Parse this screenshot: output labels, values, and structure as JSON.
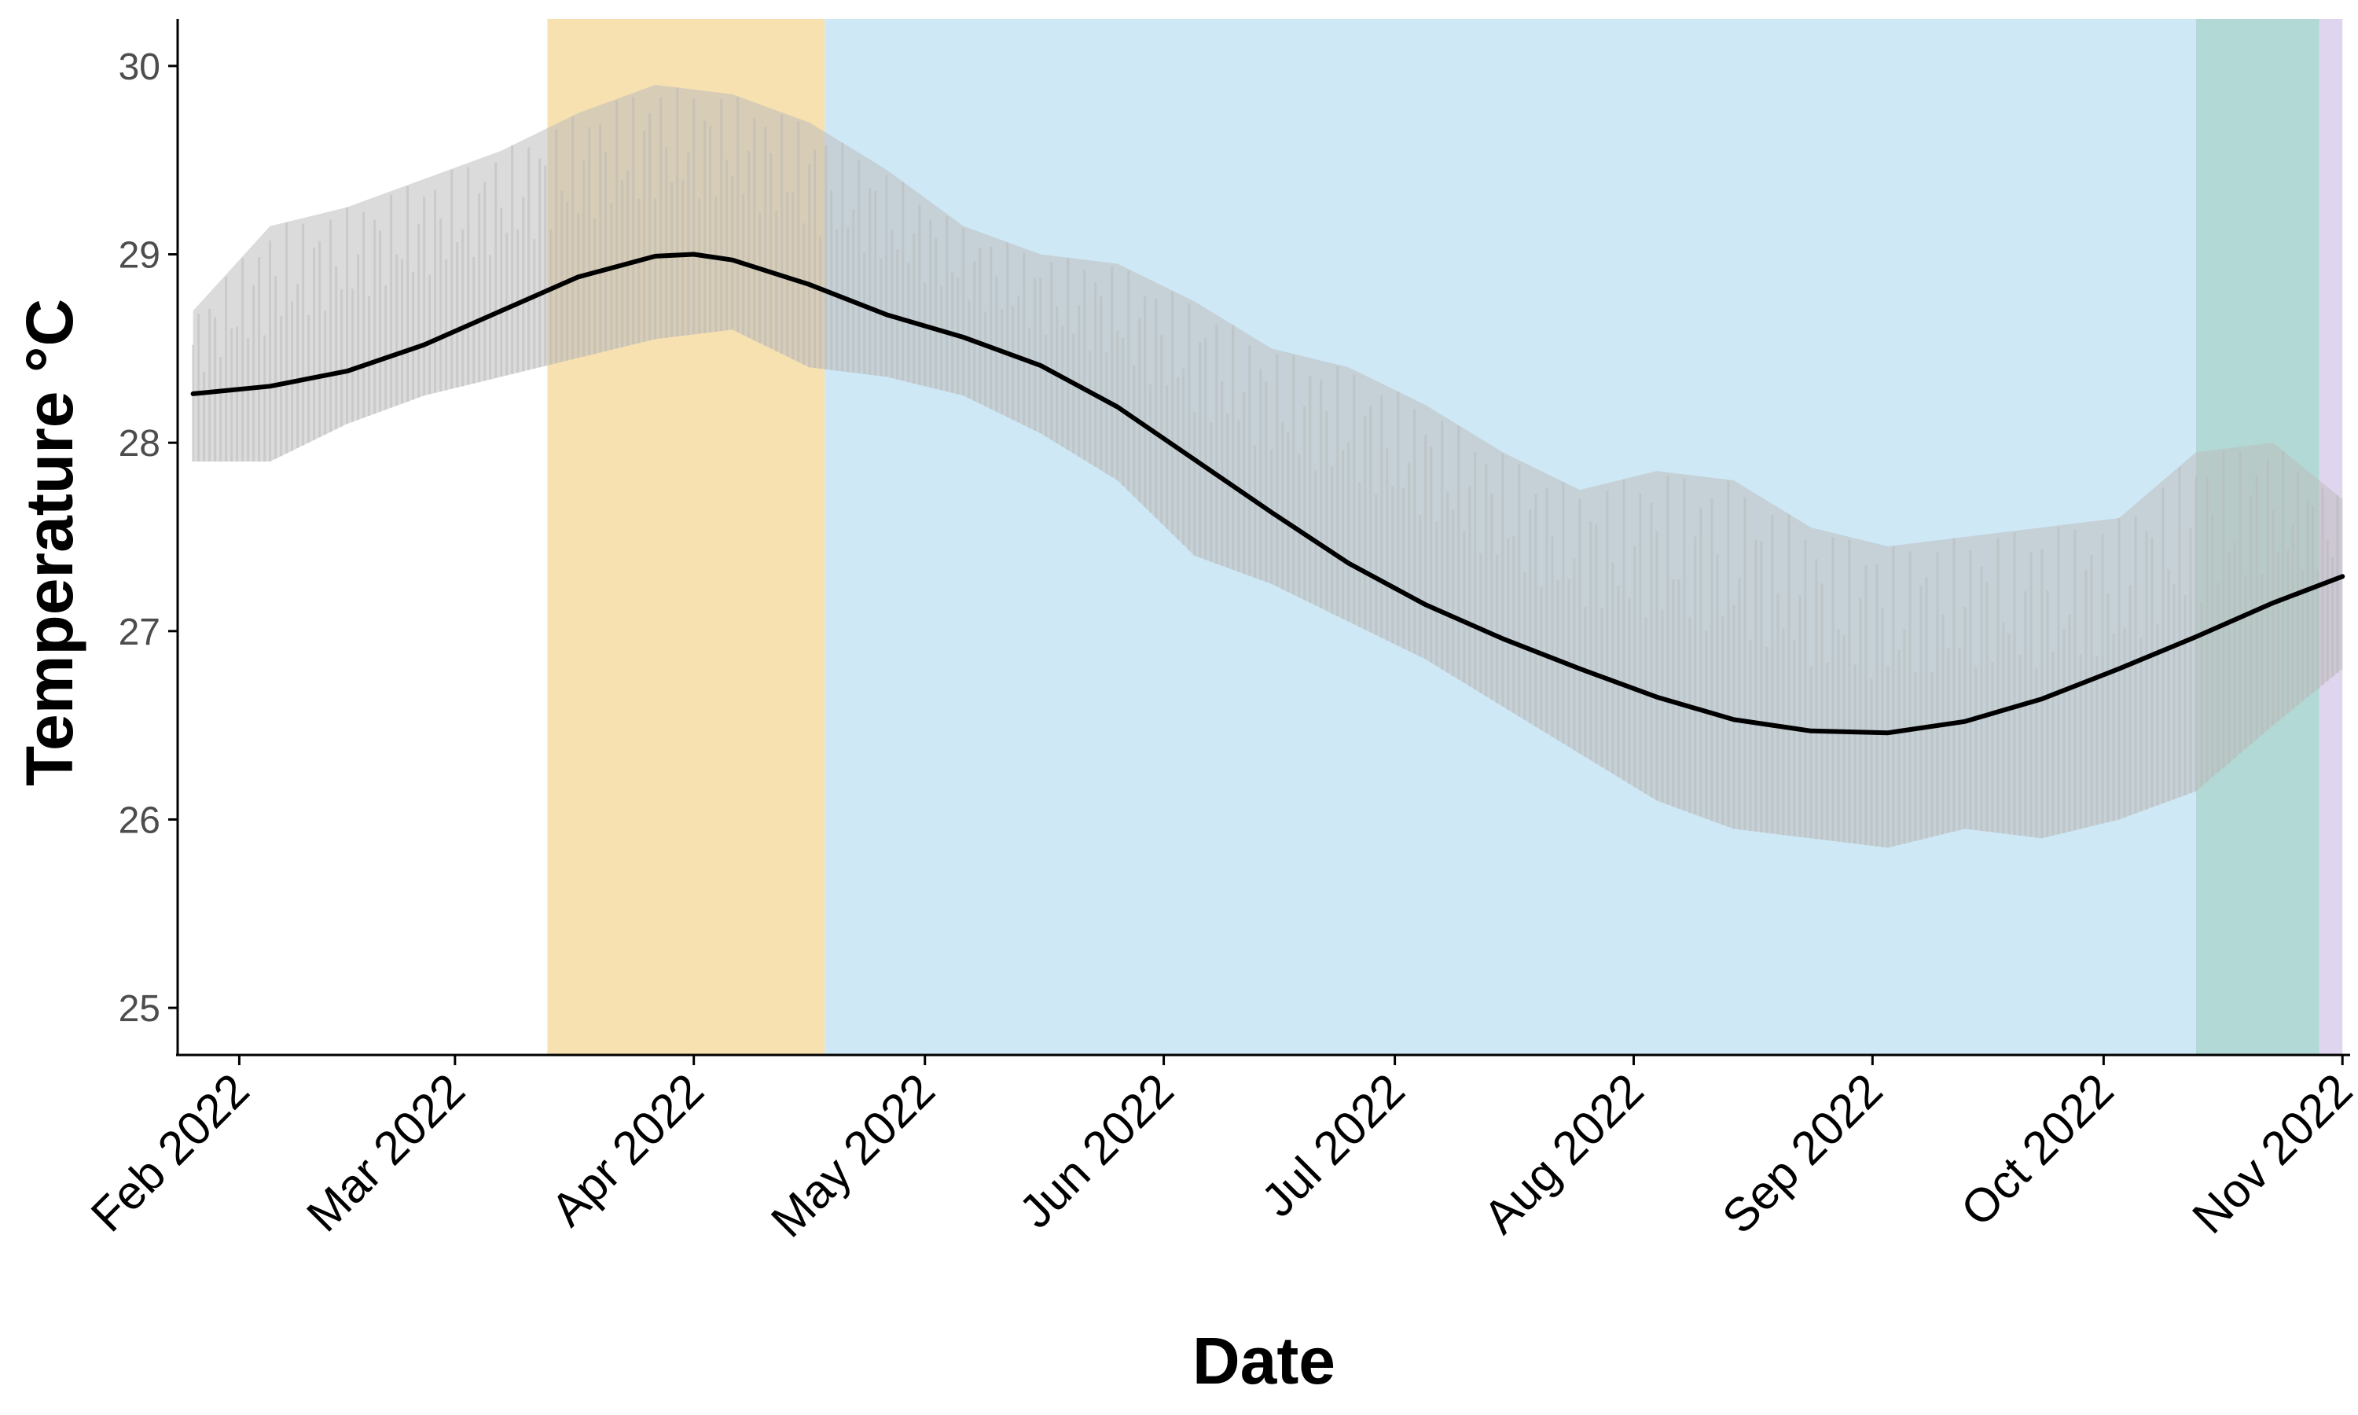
{
  "chart_data": {
    "type": "line",
    "title": "",
    "xlabel": "Date",
    "ylabel": "Temperature °C",
    "x_range": [
      "2022-01-24",
      "2022-11-02"
    ],
    "ylim": [
      24.75,
      30.25
    ],
    "y_ticks": [
      25,
      26,
      27,
      28,
      29,
      30
    ],
    "y_tick_labels": [
      "25",
      "26",
      "27",
      "28",
      "29",
      "30"
    ],
    "x_ticks": [
      "2022-02-01",
      "2022-03-01",
      "2022-04-01",
      "2022-05-01",
      "2022-06-01",
      "2022-07-01",
      "2022-08-01",
      "2022-09-01",
      "2022-10-01",
      "2022-11-01"
    ],
    "x_tick_labels": [
      "Feb 2022",
      "Mar 2022",
      "Apr 2022",
      "May 2022",
      "Jun 2022",
      "Jul 2022",
      "Aug 2022",
      "Sep 2022",
      "Oct 2022",
      "Nov 2022"
    ],
    "grid": false,
    "legend": "none",
    "shaded_periods": [
      {
        "start": "2022-03-13",
        "end": "2022-04-18",
        "color": "#f7e1b0"
      },
      {
        "start": "2022-04-18",
        "end": "2022-10-13",
        "color": "#cfe8f6"
      },
      {
        "start": "2022-10-13",
        "end": "2022-10-29",
        "color": "#b2d9d5"
      },
      {
        "start": "2022-10-29",
        "end": "2022-11-01",
        "color": "#e0d5ee"
      }
    ],
    "series": [
      {
        "role": "raw observations (band)",
        "color": "#bdbdbd",
        "x": [
          "2022-01-26",
          "2022-02-05",
          "2022-02-15",
          "2022-02-25",
          "2022-03-07",
          "2022-03-17",
          "2022-03-27",
          "2022-04-06",
          "2022-04-16",
          "2022-04-26",
          "2022-05-06",
          "2022-05-16",
          "2022-05-26",
          "2022-06-05",
          "2022-06-15",
          "2022-06-25",
          "2022-07-05",
          "2022-07-15",
          "2022-07-25",
          "2022-08-04",
          "2022-08-14",
          "2022-08-24",
          "2022-09-03",
          "2022-09-13",
          "2022-09-23",
          "2022-10-03",
          "2022-10-13",
          "2022-10-23",
          "2022-11-01"
        ],
        "low": [
          27.9,
          27.9,
          28.1,
          28.25,
          28.35,
          28.45,
          28.55,
          28.6,
          28.4,
          28.35,
          28.25,
          28.05,
          27.8,
          27.4,
          27.25,
          27.05,
          26.85,
          26.6,
          26.35,
          26.1,
          25.95,
          25.9,
          25.85,
          25.95,
          25.9,
          26.0,
          26.15,
          26.5,
          26.8
        ],
        "high": [
          28.7,
          29.15,
          29.25,
          29.4,
          29.55,
          29.75,
          29.9,
          29.85,
          29.7,
          29.45,
          29.15,
          29.0,
          28.95,
          28.75,
          28.5,
          28.4,
          28.2,
          27.95,
          27.75,
          27.85,
          27.8,
          27.55,
          27.45,
          27.5,
          27.55,
          27.6,
          27.95,
          28.0,
          27.7
        ]
      },
      {
        "role": "smoothed trend",
        "color": "#000000",
        "x": [
          "2022-01-26",
          "2022-02-05",
          "2022-02-15",
          "2022-02-25",
          "2022-03-07",
          "2022-03-17",
          "2022-03-27",
          "2022-04-01",
          "2022-04-06",
          "2022-04-16",
          "2022-04-26",
          "2022-05-06",
          "2022-05-16",
          "2022-05-26",
          "2022-06-05",
          "2022-06-15",
          "2022-06-25",
          "2022-07-05",
          "2022-07-15",
          "2022-07-25",
          "2022-08-04",
          "2022-08-14",
          "2022-08-24",
          "2022-09-03",
          "2022-09-13",
          "2022-09-23",
          "2022-10-03",
          "2022-10-13",
          "2022-10-23",
          "2022-11-01"
        ],
        "y": [
          28.26,
          28.3,
          28.38,
          28.52,
          28.7,
          28.88,
          28.99,
          29.0,
          28.97,
          28.84,
          28.68,
          28.56,
          28.41,
          28.19,
          27.91,
          27.63,
          27.36,
          27.14,
          26.96,
          26.8,
          26.65,
          26.53,
          26.47,
          26.46,
          26.52,
          26.64,
          26.8,
          26.97,
          27.15,
          27.29
        ]
      }
    ]
  }
}
